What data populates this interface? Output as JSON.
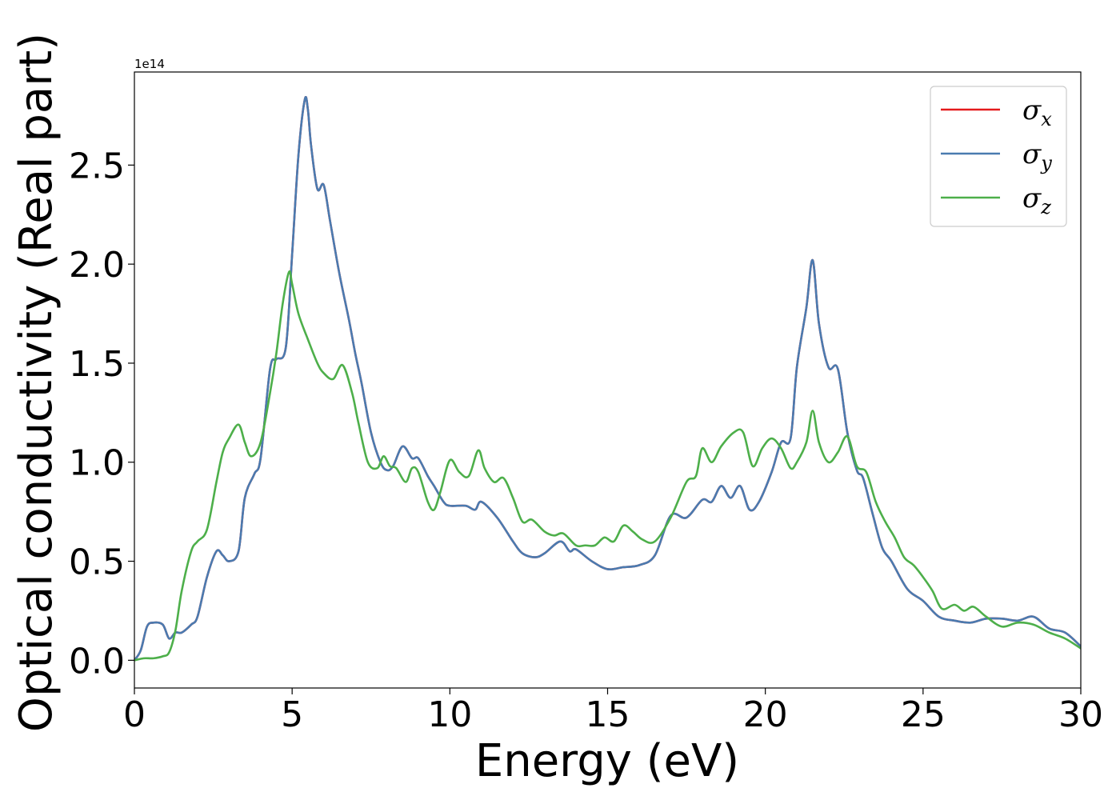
{
  "chart_data": {
    "type": "line",
    "xlabel": "Energy (eV)",
    "ylabel": "Optical conductivity (Real part)",
    "y_offset_text": "1e14",
    "xlim": [
      0,
      30
    ],
    "ylim": [
      -0.14,
      2.97
    ],
    "x_ticks": [
      0,
      5,
      10,
      15,
      20,
      25,
      30
    ],
    "x_tick_labels": [
      "0",
      "5",
      "10",
      "15",
      "20",
      "25",
      "30"
    ],
    "y_ticks": [
      0.0,
      0.5,
      1.0,
      1.5,
      2.0,
      2.5
    ],
    "y_tick_labels": [
      "0.0",
      "0.5",
      "1.0",
      "1.5",
      "2.0",
      "2.5"
    ],
    "grid": false,
    "legend_position": "top-right",
    "colors": {
      "sigma_x": "#e41a1c",
      "sigma_y": "#4a7bb0",
      "sigma_z": "#4daf4a"
    },
    "series": [
      {
        "name": "σ_x",
        "legend_base": "σ",
        "legend_sub": "x",
        "color": "#e41a1c",
        "x": [
          0,
          0.2,
          0.4,
          0.6,
          0.9,
          1.1,
          1.3,
          1.5,
          1.8,
          2.0,
          2.3,
          2.6,
          2.8,
          3.0,
          3.3,
          3.5,
          3.8,
          4.0,
          4.3,
          4.5,
          4.8,
          5.0,
          5.2,
          5.4,
          5.5,
          5.6,
          5.8,
          6.0,
          6.2,
          6.5,
          6.8,
          7.0,
          7.2,
          7.5,
          7.8,
          8.0,
          8.2,
          8.5,
          8.8,
          9.0,
          9.3,
          9.5,
          9.8,
          10.0,
          10.5,
          10.8,
          11.0,
          11.5,
          12.0,
          12.3,
          12.7,
          13.0,
          13.5,
          13.8,
          14.0,
          14.5,
          15.0,
          15.5,
          16.0,
          16.5,
          17.0,
          17.5,
          18.0,
          18.3,
          18.6,
          18.9,
          19.2,
          19.5,
          19.8,
          20.2,
          20.5,
          20.8,
          21.0,
          21.3,
          21.5,
          21.7,
          22.0,
          22.3,
          22.6,
          22.9,
          23.1,
          23.4,
          23.7,
          24.0,
          24.5,
          25.0,
          25.5,
          26.0,
          26.5,
          27.0,
          27.5,
          28.0,
          28.5,
          29.0,
          29.5,
          30.0
        ],
        "values": [
          0.0,
          0.05,
          0.17,
          0.19,
          0.18,
          0.11,
          0.14,
          0.14,
          0.18,
          0.22,
          0.42,
          0.55,
          0.53,
          0.5,
          0.55,
          0.82,
          0.94,
          1.02,
          1.47,
          1.52,
          1.58,
          2.05,
          2.55,
          2.83,
          2.78,
          2.6,
          2.38,
          2.4,
          2.22,
          1.95,
          1.72,
          1.55,
          1.4,
          1.15,
          1.0,
          0.96,
          0.98,
          1.08,
          1.02,
          1.02,
          0.93,
          0.88,
          0.8,
          0.78,
          0.78,
          0.76,
          0.8,
          0.72,
          0.6,
          0.54,
          0.52,
          0.54,
          0.6,
          0.55,
          0.56,
          0.5,
          0.46,
          0.47,
          0.48,
          0.53,
          0.73,
          0.72,
          0.81,
          0.8,
          0.88,
          0.82,
          0.88,
          0.76,
          0.8,
          0.95,
          1.1,
          1.12,
          1.48,
          1.78,
          2.02,
          1.7,
          1.48,
          1.47,
          1.15,
          0.96,
          0.92,
          0.74,
          0.57,
          0.5,
          0.36,
          0.3,
          0.22,
          0.2,
          0.19,
          0.21,
          0.21,
          0.2,
          0.22,
          0.16,
          0.14,
          0.07
        ]
      },
      {
        "name": "σ_y",
        "legend_base": "σ",
        "legend_sub": "y",
        "color": "#4a7bb0",
        "x": [
          0,
          0.2,
          0.4,
          0.6,
          0.9,
          1.1,
          1.3,
          1.5,
          1.8,
          2.0,
          2.3,
          2.6,
          2.8,
          3.0,
          3.3,
          3.5,
          3.8,
          4.0,
          4.3,
          4.5,
          4.8,
          5.0,
          5.2,
          5.4,
          5.5,
          5.6,
          5.8,
          6.0,
          6.2,
          6.5,
          6.8,
          7.0,
          7.2,
          7.5,
          7.8,
          8.0,
          8.2,
          8.5,
          8.8,
          9.0,
          9.3,
          9.5,
          9.8,
          10.0,
          10.5,
          10.8,
          11.0,
          11.5,
          12.0,
          12.3,
          12.7,
          13.0,
          13.5,
          13.8,
          14.0,
          14.5,
          15.0,
          15.5,
          16.0,
          16.5,
          17.0,
          17.5,
          18.0,
          18.3,
          18.6,
          18.9,
          19.2,
          19.5,
          19.8,
          20.2,
          20.5,
          20.8,
          21.0,
          21.3,
          21.5,
          21.7,
          22.0,
          22.3,
          22.6,
          22.9,
          23.1,
          23.4,
          23.7,
          24.0,
          24.5,
          25.0,
          25.5,
          26.0,
          26.5,
          27.0,
          27.5,
          28.0,
          28.5,
          29.0,
          29.5,
          30.0
        ],
        "values": [
          0.0,
          0.05,
          0.17,
          0.19,
          0.18,
          0.11,
          0.14,
          0.14,
          0.18,
          0.22,
          0.42,
          0.55,
          0.53,
          0.5,
          0.55,
          0.82,
          0.94,
          1.02,
          1.47,
          1.52,
          1.58,
          2.05,
          2.55,
          2.83,
          2.78,
          2.6,
          2.38,
          2.4,
          2.22,
          1.95,
          1.72,
          1.55,
          1.4,
          1.15,
          1.0,
          0.96,
          0.98,
          1.08,
          1.02,
          1.02,
          0.93,
          0.88,
          0.8,
          0.78,
          0.78,
          0.76,
          0.8,
          0.72,
          0.6,
          0.54,
          0.52,
          0.54,
          0.6,
          0.55,
          0.56,
          0.5,
          0.46,
          0.47,
          0.48,
          0.53,
          0.73,
          0.72,
          0.81,
          0.8,
          0.88,
          0.82,
          0.88,
          0.76,
          0.8,
          0.95,
          1.1,
          1.12,
          1.48,
          1.78,
          2.02,
          1.7,
          1.48,
          1.47,
          1.15,
          0.96,
          0.92,
          0.74,
          0.57,
          0.5,
          0.36,
          0.3,
          0.22,
          0.2,
          0.19,
          0.21,
          0.21,
          0.2,
          0.22,
          0.16,
          0.14,
          0.07
        ]
      },
      {
        "name": "σ_z",
        "legend_base": "σ",
        "legend_sub": "z",
        "color": "#4daf4a",
        "x": [
          0,
          0.3,
          0.6,
          0.9,
          1.1,
          1.3,
          1.5,
          1.8,
          2.0,
          2.3,
          2.6,
          2.8,
          3.0,
          3.3,
          3.5,
          3.7,
          4.0,
          4.3,
          4.5,
          4.7,
          4.9,
          5.0,
          5.2,
          5.5,
          5.8,
          6.0,
          6.3,
          6.6,
          6.9,
          7.1,
          7.4,
          7.7,
          7.9,
          8.1,
          8.3,
          8.6,
          8.8,
          9.0,
          9.3,
          9.5,
          9.7,
          10.0,
          10.3,
          10.6,
          10.9,
          11.1,
          11.4,
          11.7,
          12.0,
          12.3,
          12.6,
          13.0,
          13.3,
          13.6,
          14.0,
          14.3,
          14.6,
          14.9,
          15.2,
          15.5,
          15.8,
          16.1,
          16.5,
          17.0,
          17.5,
          17.8,
          18.0,
          18.3,
          18.6,
          19.0,
          19.3,
          19.6,
          19.9,
          20.2,
          20.5,
          20.8,
          21.0,
          21.3,
          21.5,
          21.7,
          22.0,
          22.3,
          22.6,
          22.9,
          23.2,
          23.5,
          23.8,
          24.1,
          24.4,
          24.7,
          25.0,
          25.3,
          25.6,
          26.0,
          26.3,
          26.6,
          27.0,
          27.5,
          28.0,
          28.5,
          29.0,
          29.5,
          30.0
        ],
        "values": [
          0.0,
          0.01,
          0.01,
          0.02,
          0.04,
          0.15,
          0.35,
          0.55,
          0.6,
          0.66,
          0.9,
          1.05,
          1.12,
          1.19,
          1.1,
          1.03,
          1.1,
          1.35,
          1.55,
          1.8,
          1.96,
          1.9,
          1.75,
          1.62,
          1.5,
          1.45,
          1.42,
          1.49,
          1.35,
          1.2,
          1.0,
          0.97,
          1.03,
          0.98,
          0.97,
          0.9,
          0.97,
          0.95,
          0.8,
          0.76,
          0.85,
          1.01,
          0.95,
          0.93,
          1.06,
          0.97,
          0.9,
          0.92,
          0.82,
          0.7,
          0.71,
          0.65,
          0.63,
          0.64,
          0.58,
          0.58,
          0.58,
          0.62,
          0.6,
          0.68,
          0.65,
          0.61,
          0.6,
          0.72,
          0.9,
          0.93,
          1.07,
          1.0,
          1.08,
          1.15,
          1.15,
          0.98,
          1.07,
          1.12,
          1.07,
          0.97,
          1.0,
          1.1,
          1.26,
          1.1,
          1.0,
          1.05,
          1.13,
          0.98,
          0.95,
          0.8,
          0.7,
          0.62,
          0.52,
          0.48,
          0.42,
          0.35,
          0.26,
          0.28,
          0.25,
          0.27,
          0.22,
          0.17,
          0.19,
          0.18,
          0.14,
          0.11,
          0.06
        ]
      }
    ]
  }
}
